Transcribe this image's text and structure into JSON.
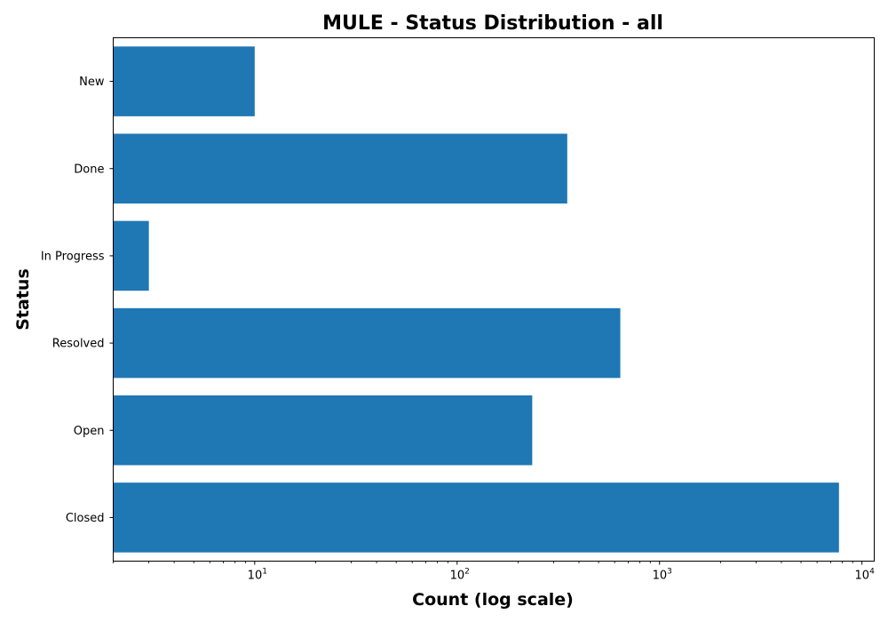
{
  "chart_data": {
    "type": "bar",
    "orientation": "horizontal",
    "title": "MULE - Status Distribution - all",
    "xlabel": "Count (log scale)",
    "ylabel": "Status",
    "x_scale": "log",
    "xlim": [
      2,
      11500
    ],
    "x_ticks": [
      {
        "base": "10",
        "exp": "1",
        "value": 10
      },
      {
        "base": "10",
        "exp": "2",
        "value": 100
      },
      {
        "base": "10",
        "exp": "3",
        "value": 1000
      },
      {
        "base": "10",
        "exp": "4",
        "value": 10000
      }
    ],
    "categories": [
      "New",
      "Done",
      "In Progress",
      "Resolved",
      "Open",
      "Closed"
    ],
    "values": [
      10,
      350,
      3,
      640,
      235,
      7700
    ],
    "bar_color": "#1f77b4",
    "grid": false,
    "legend": "none"
  }
}
